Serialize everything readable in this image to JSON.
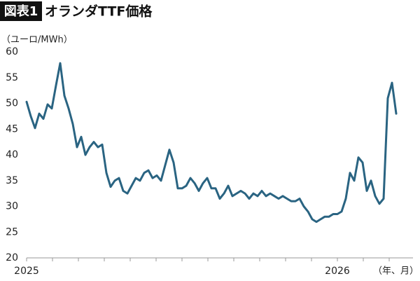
{
  "chart_data": {
    "type": "line",
    "figure_label": "図表1",
    "title": "オランダTTF価格",
    "y_label": "（ユーロ/MWh）",
    "x_label": "（年、月）",
    "categories": [
      "2025",
      null,
      null,
      null,
      null,
      null,
      null,
      null,
      null,
      null,
      null,
      null,
      null,
      null,
      null,
      null,
      null,
      null,
      null,
      null,
      null,
      null,
      null,
      null,
      null,
      null,
      null,
      null,
      null,
      null,
      null,
      null,
      null,
      null,
      null,
      null,
      null,
      null,
      null,
      null,
      null,
      null,
      null,
      null,
      null,
      null,
      null,
      null,
      null,
      null,
      null,
      null,
      null,
      null,
      null,
      null,
      null,
      null,
      null,
      null,
      null,
      null,
      null,
      null,
      null,
      null,
      null,
      null,
      null,
      null,
      null,
      null,
      null,
      null,
      "2026",
      null,
      null,
      null,
      null,
      null,
      null,
      null,
      null,
      null,
      null,
      null,
      null,
      null,
      null
    ],
    "values": [
      50.3,
      47.5,
      45.2,
      48.0,
      47.0,
      49.8,
      49.0,
      53.5,
      57.8,
      51.5,
      49.0,
      46.0,
      41.5,
      43.5,
      40.0,
      41.5,
      42.5,
      41.5,
      42.0,
      36.5,
      33.8,
      35.0,
      35.5,
      33.0,
      32.5,
      34.0,
      35.5,
      35.0,
      36.5,
      37.0,
      35.5,
      36.0,
      35.0,
      38.0,
      41.0,
      38.5,
      33.5,
      33.5,
      34.0,
      35.5,
      34.5,
      33.0,
      34.5,
      35.5,
      33.5,
      33.5,
      31.5,
      32.5,
      34.0,
      32.0,
      32.5,
      33.0,
      32.5,
      31.5,
      32.5,
      32.0,
      33.0,
      32.0,
      32.5,
      32.0,
      31.5,
      32.0,
      31.5,
      31.0,
      31.0,
      31.5,
      30.0,
      29.0,
      27.5,
      27.0,
      27.5,
      28.0,
      28.0,
      28.5,
      28.5,
      29.0,
      31.5,
      36.5,
      35.0,
      39.5,
      38.5,
      33.0,
      35.0,
      32.0,
      30.5,
      31.5,
      51.0,
      54.0,
      48.0
    ],
    "color": "#2a6482",
    "ylim": [
      20,
      60
    ],
    "yticks": [
      20,
      25,
      30,
      35,
      40,
      45,
      50,
      55,
      60
    ],
    "grid": false
  }
}
